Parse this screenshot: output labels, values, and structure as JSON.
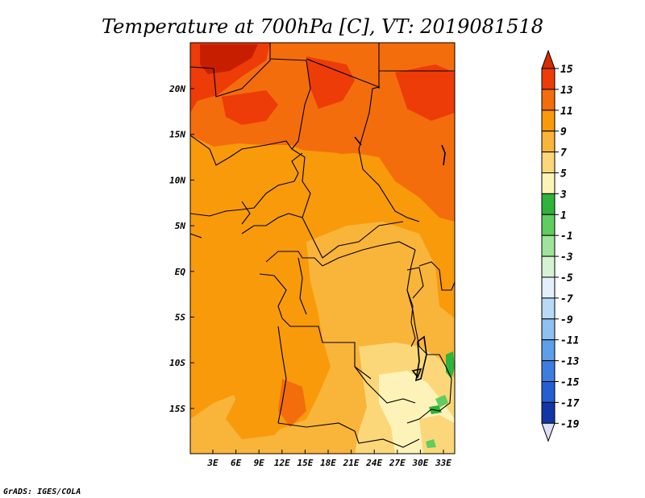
{
  "title": "Temperature at 700hPa [C], VT: 2019081518",
  "credit": "GrADS: IGES/COLA",
  "chart_data": {
    "type": "heatmap",
    "variable": "Temperature at 700hPa",
    "units": "C",
    "valid_time": "2019081518",
    "x_ticks": [
      "3E",
      "6E",
      "9E",
      "12E",
      "15E",
      "18E",
      "21E",
      "24E",
      "27E",
      "30E",
      "33E"
    ],
    "y_ticks": [
      "20N",
      "15N",
      "10N",
      "5N",
      "EQ",
      "5S",
      "10S",
      "15S"
    ],
    "colorbar": {
      "levels": [
        15,
        13,
        11,
        9,
        7,
        5,
        3,
        1,
        -1,
        -3,
        -5,
        -7,
        -9,
        -11,
        -13,
        -15,
        -17,
        -19
      ],
      "colors": [
        "#c81e00",
        "#ed3c08",
        "#f46d0c",
        "#f89a0a",
        "#f9b43a",
        "#fbd77a",
        "#fdf3b8",
        "#2fb33a",
        "#5fcd5f",
        "#a0e39c",
        "#d6f2d4",
        "#e3f0fb",
        "#b9daf6",
        "#8ec0f1",
        "#5d9fe8",
        "#3c7ee0",
        "#235fcf",
        "#1236a8",
        "#101a70"
      ],
      "upper_arrow_color": "#d72c00",
      "lower_arrow_color": "#dedef8"
    }
  }
}
